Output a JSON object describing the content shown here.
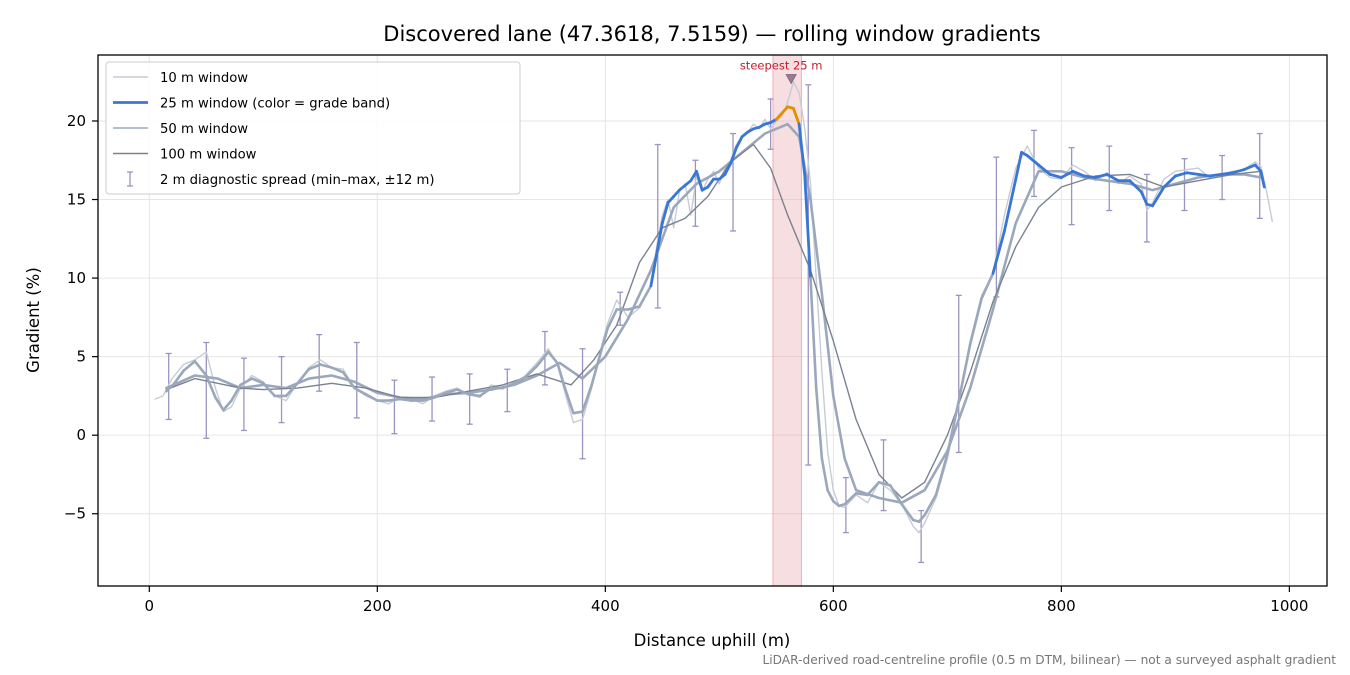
{
  "chart_data": {
    "type": "line",
    "title": "Discovered lane (47.3618, 7.5159) — rolling window gradients",
    "xlabel": "Distance uphill (m)",
    "ylabel": "Gradient (%)",
    "xlim": [
      -45,
      1033
    ],
    "ylim": [
      -9.6,
      24.2
    ],
    "x_ticks": [
      0,
      200,
      400,
      600,
      800,
      1000
    ],
    "y_ticks": [
      -5,
      0,
      5,
      10,
      15,
      20
    ],
    "grid": true,
    "legend_position": "top-left",
    "footnote": "LiDAR-derived road-centreline profile (0.5 m DTM, bilinear) — not a surveyed asphalt gradient",
    "highlight": {
      "x_range": [
        547,
        572
      ],
      "label": "steepest 25 m",
      "marker": [
        563,
        22.7
      ]
    },
    "series": [
      {
        "name": "10 m window",
        "color": "#c6ccd6",
        "x": [
          5,
          12,
          20,
          30,
          40,
          50,
          58,
          65,
          72,
          80,
          90,
          100,
          110,
          120,
          130,
          140,
          150,
          160,
          170,
          180,
          190,
          200,
          210,
          220,
          230,
          240,
          250,
          260,
          270,
          280,
          290,
          300,
          310,
          320,
          330,
          340,
          350,
          358,
          365,
          372,
          380,
          388,
          395,
          402,
          410,
          420,
          430,
          440,
          445,
          450,
          455,
          460,
          465,
          470,
          475,
          480,
          485,
          490,
          495,
          500,
          505,
          510,
          515,
          520,
          525,
          530,
          535,
          540,
          545,
          550,
          555,
          560,
          565,
          570,
          575,
          580,
          585,
          590,
          595,
          600,
          605,
          610,
          620,
          630,
          640,
          650,
          660,
          670,
          675,
          680,
          690,
          700,
          710,
          720,
          730,
          740,
          750,
          760,
          770,
          780,
          790,
          800,
          810,
          820,
          830,
          840,
          850,
          860,
          870,
          875,
          880,
          890,
          900,
          910,
          920,
          930,
          940,
          950,
          960,
          970,
          975,
          980,
          985
        ],
        "y": [
          2.3,
          2.5,
          3.6,
          4.5,
          4.8,
          5.3,
          3.0,
          1.5,
          1.8,
          3.0,
          3.8,
          3.4,
          2.5,
          2.2,
          3.3,
          4.3,
          4.8,
          4.3,
          4.2,
          3.0,
          2.5,
          2.2,
          2.0,
          2.4,
          2.3,
          2.0,
          2.5,
          2.8,
          3.0,
          2.6,
          2.4,
          3.2,
          3.0,
          3.3,
          3.8,
          4.6,
          5.5,
          4.5,
          2.6,
          0.8,
          1.0,
          3.0,
          5.2,
          7.1,
          8.6,
          7.5,
          8.1,
          9.5,
          12.0,
          14.0,
          15.0,
          13.2,
          15.5,
          16.0,
          14.0,
          16.5,
          15.5,
          16.3,
          16.8,
          16.0,
          17.0,
          17.5,
          18.5,
          19.0,
          19.3,
          19.8,
          19.5,
          20.1,
          19.5,
          20.0,
          20.3,
          21.2,
          22.5,
          21.8,
          19.5,
          16.0,
          10.0,
          4.0,
          -1.0,
          -3.5,
          -4.5,
          -4.6,
          -3.8,
          -4.3,
          -3.0,
          -3.5,
          -4.4,
          -5.8,
          -6.2,
          -5.6,
          -4.0,
          -1.5,
          2.0,
          6.0,
          8.9,
          10.3,
          14.0,
          17.0,
          18.4,
          17.0,
          16.4,
          16.3,
          17.2,
          16.8,
          16.2,
          16.7,
          16.0,
          16.5,
          16.0,
          14.3,
          14.8,
          16.3,
          16.8,
          16.9,
          17.0,
          16.4,
          16.6,
          16.8,
          16.9,
          17.4,
          17.1,
          15.5,
          13.6
        ]
      },
      {
        "name": "25 m window (color = grade band)",
        "color": "#3a76d4",
        "steep_color": "#e09000",
        "x": [
          15,
          22,
          30,
          40,
          50,
          58,
          65,
          72,
          80,
          90,
          100,
          110,
          120,
          130,
          140,
          150,
          160,
          170,
          180,
          190,
          200,
          210,
          220,
          230,
          240,
          250,
          260,
          270,
          280,
          290,
          300,
          310,
          320,
          330,
          340,
          350,
          358,
          365,
          372,
          380,
          388,
          395,
          402,
          410,
          420,
          430,
          440,
          445,
          450,
          455,
          460,
          465,
          470,
          475,
          480,
          485,
          490,
          495,
          500,
          505,
          510,
          515,
          520,
          525,
          530,
          535,
          540,
          545,
          550,
          555,
          560,
          565,
          570,
          575,
          580,
          585,
          590,
          595,
          600,
          605,
          610,
          620,
          630,
          640,
          650,
          660,
          670,
          675,
          680,
          690,
          700,
          710,
          720,
          730,
          740,
          750,
          760,
          765,
          770,
          780,
          790,
          800,
          810,
          820,
          830,
          840,
          850,
          860,
          870,
          875,
          880,
          890,
          900,
          910,
          920,
          930,
          940,
          950,
          960,
          970,
          975,
          978
        ],
        "y": [
          2.8,
          3.3,
          4.1,
          4.7,
          3.8,
          2.4,
          1.6,
          2.2,
          3.2,
          3.6,
          3.3,
          2.5,
          2.5,
          3.3,
          4.2,
          4.5,
          4.3,
          4.0,
          3.0,
          2.6,
          2.2,
          2.2,
          2.3,
          2.2,
          2.2,
          2.4,
          2.7,
          2.9,
          2.6,
          2.5,
          3.0,
          3.0,
          3.3,
          3.7,
          4.4,
          5.3,
          4.6,
          2.9,
          1.4,
          1.5,
          3.2,
          5.0,
          6.8,
          8.0,
          8.0,
          8.2,
          9.5,
          11.5,
          13.5,
          14.8,
          15.2,
          15.6,
          15.9,
          16.2,
          16.8,
          15.6,
          15.8,
          16.3,
          16.3,
          16.6,
          17.3,
          18.3,
          19.0,
          19.3,
          19.5,
          19.6,
          19.8,
          19.9,
          20.1,
          20.5,
          20.9,
          20.8,
          19.8,
          16.5,
          10.0,
          3.0,
          -1.5,
          -3.5,
          -4.2,
          -4.5,
          -4.4,
          -3.7,
          -3.8,
          -3.0,
          -3.2,
          -4.4,
          -5.4,
          -5.5,
          -5.1,
          -3.8,
          -1.2,
          2.2,
          5.8,
          8.7,
          10.3,
          13.0,
          16.3,
          18.0,
          17.8,
          17.2,
          16.6,
          16.4,
          16.8,
          16.5,
          16.4,
          16.6,
          16.2,
          16.2,
          15.5,
          14.7,
          14.6,
          15.8,
          16.5,
          16.7,
          16.6,
          16.5,
          16.6,
          16.7,
          16.9,
          17.2,
          16.8,
          15.8
        ]
      },
      {
        "name": "50 m window",
        "color": "#9ba8bb",
        "x": [
          15,
          40,
          60,
          80,
          100,
          120,
          140,
          160,
          180,
          200,
          220,
          240,
          260,
          280,
          300,
          320,
          340,
          360,
          380,
          400,
          420,
          440,
          460,
          480,
          500,
          520,
          540,
          560,
          570,
          580,
          590,
          600,
          610,
          620,
          640,
          660,
          680,
          700,
          720,
          740,
          760,
          780,
          800,
          820,
          840,
          860,
          880,
          900,
          920,
          940,
          960,
          975
        ],
        "y": [
          3.0,
          3.8,
          3.6,
          3.0,
          3.2,
          3.0,
          3.6,
          3.8,
          3.4,
          2.7,
          2.4,
          2.3,
          2.6,
          2.7,
          2.9,
          3.2,
          3.8,
          4.6,
          3.6,
          5.0,
          7.4,
          10.5,
          14.5,
          16.0,
          16.8,
          18.0,
          19.2,
          19.8,
          19.0,
          15.0,
          9.0,
          2.5,
          -1.5,
          -3.5,
          -4.0,
          -4.3,
          -3.5,
          -1.0,
          3.0,
          8.0,
          13.5,
          16.8,
          16.8,
          16.4,
          16.2,
          16.0,
          15.6,
          16.0,
          16.4,
          16.6,
          16.6,
          16.4
        ]
      },
      {
        "name": "100 m window",
        "color": "#7a8292",
        "x": [
          15,
          40,
          60,
          80,
          100,
          130,
          160,
          190,
          220,
          250,
          280,
          310,
          340,
          370,
          390,
          410,
          430,
          450,
          470,
          490,
          510,
          530,
          545,
          560,
          580,
          600,
          620,
          640,
          660,
          680,
          700,
          720,
          740,
          760,
          780,
          800,
          830,
          860,
          890,
          920,
          950,
          975
        ],
        "y": [
          2.9,
          3.6,
          3.3,
          3.0,
          2.9,
          3.0,
          3.3,
          3.0,
          2.4,
          2.4,
          2.8,
          3.2,
          3.9,
          3.2,
          4.8,
          7.0,
          11.0,
          13.2,
          13.8,
          15.2,
          17.4,
          18.5,
          17.0,
          14.0,
          10.5,
          6.0,
          1.0,
          -2.5,
          -4.0,
          -3.0,
          0.0,
          4.0,
          8.5,
          12.0,
          14.5,
          15.8,
          16.5,
          16.6,
          15.8,
          16.2,
          16.6,
          16.8
        ]
      },
      {
        "name": "2 m diagnostic spread (min–max, ±12 m)",
        "color": "#9a94c0",
        "type": "errorbar",
        "x": [
          17,
          50,
          83,
          116,
          149,
          182,
          215,
          248,
          281,
          314,
          347,
          380,
          413,
          446,
          479,
          512,
          545,
          578,
          611,
          644,
          677,
          710,
          743,
          776,
          809,
          842,
          875,
          908,
          941,
          974
        ],
        "y_min": [
          1.0,
          -0.2,
          0.3,
          0.8,
          2.8,
          1.1,
          0.1,
          0.9,
          0.7,
          1.5,
          3.2,
          -1.5,
          7.0,
          8.1,
          13.3,
          13.0,
          18.2,
          -1.9,
          -6.2,
          -4.8,
          -8.1,
          -1.1,
          8.8,
          15.2,
          13.4,
          14.3,
          12.3,
          14.3,
          15.0,
          13.8
        ],
        "y_max": [
          5.2,
          5.9,
          4.9,
          5.0,
          6.4,
          5.9,
          3.5,
          3.7,
          3.9,
          4.2,
          6.6,
          5.5,
          9.1,
          18.5,
          17.5,
          19.2,
          21.4,
          22.3,
          -2.7,
          -0.3,
          -4.8,
          8.9,
          17.7,
          19.4,
          18.3,
          18.4,
          16.6,
          17.6,
          17.8,
          19.2
        ]
      }
    ]
  }
}
